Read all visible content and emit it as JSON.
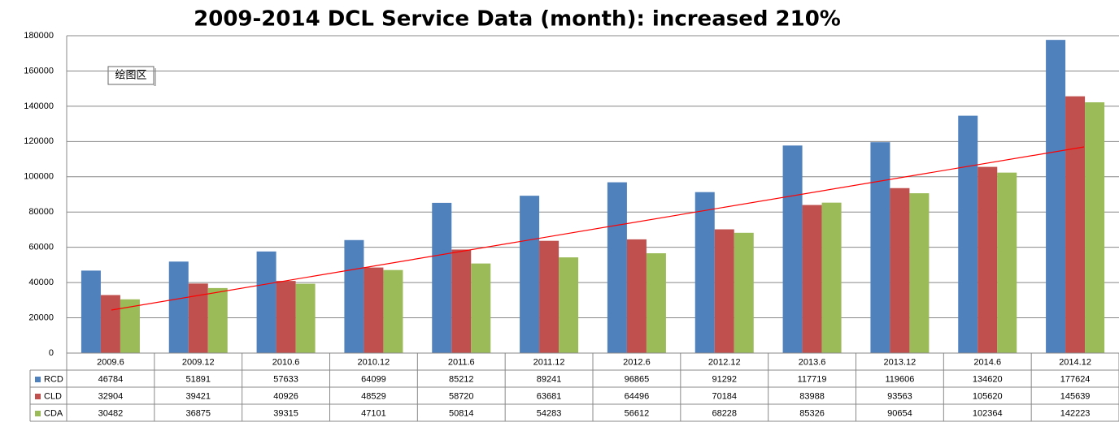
{
  "chart_data": {
    "type": "bar",
    "title": "2009-2014 DCL Service Data (month): increased 210%",
    "annotation": "绘图区",
    "categories": [
      "2009.6",
      "2009.12",
      "2010.6",
      "2010.12",
      "2011.6",
      "2011.12",
      "2012.6",
      "2012.12",
      "2013.6",
      "2013.12",
      "2014.6",
      "2014.12"
    ],
    "series": [
      {
        "name": "RCD",
        "color": "#4f81bd",
        "values": [
          46784,
          51891,
          57633,
          64099,
          85212,
          89241,
          96865,
          91292,
          117719,
          119606,
          134620,
          177624
        ]
      },
      {
        "name": "CLD",
        "color": "#c0504d",
        "values": [
          32904,
          39421,
          40926,
          48529,
          58720,
          63681,
          64496,
          70184,
          83988,
          93563,
          105620,
          145639
        ]
      },
      {
        "name": "CDA",
        "color": "#9bbb59",
        "values": [
          30482,
          36875,
          39315,
          47101,
          50814,
          54283,
          56612,
          68228,
          85326,
          90654,
          102364,
          142223
        ]
      }
    ],
    "ylim": [
      0,
      180000
    ],
    "yticks": [
      0,
      20000,
      40000,
      60000,
      80000,
      100000,
      120000,
      140000,
      160000,
      180000
    ],
    "grid": true
  }
}
